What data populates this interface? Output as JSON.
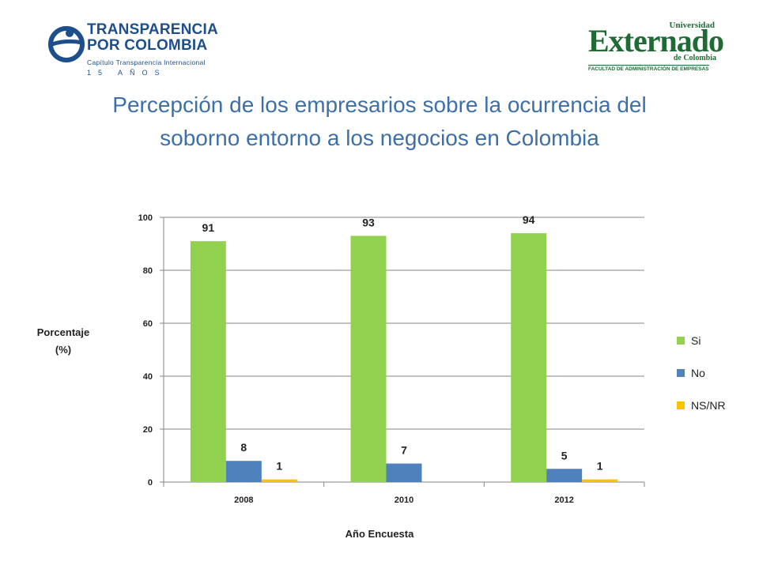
{
  "logos": {
    "left": {
      "line1": "TRANSPARENCIA",
      "line2": "POR COLOMBIA",
      "sub": "Capítulo Transparencia Internacional",
      "years": "15 AÑOS"
    },
    "right": {
      "top": "Universidad",
      "main": "Externado",
      "sub": "de Colombia",
      "faculty": "FACULTAD DE ADMINISTRACIÓN DE EMPRESAS"
    }
  },
  "title": {
    "line1": "Percepción de los empresarios sobre la ocurrencia del",
    "line2": "soborno entorno a los negocios en Colombia"
  },
  "colors": {
    "title": "#3d6fa8",
    "grid": "#868686"
  },
  "chart_data": {
    "type": "bar",
    "categories": [
      "2008",
      "2010",
      "2012"
    ],
    "series": [
      {
        "name": "Si",
        "values": [
          91,
          93,
          94
        ],
        "labels": [
          "91",
          "93",
          "94"
        ],
        "color": "#92d050"
      },
      {
        "name": "No",
        "values": [
          8,
          7,
          5
        ],
        "labels": [
          "8",
          "7",
          "5"
        ],
        "color": "#4f81bd"
      },
      {
        "name": "NS/NR",
        "values": [
          1,
          null,
          1
        ],
        "labels": [
          "1",
          "",
          "1"
        ],
        "color": "#ffc000"
      }
    ],
    "ylim": [
      0,
      100
    ],
    "yticks": [
      "0",
      "20",
      "40",
      "60",
      "80",
      "100"
    ],
    "ylabel_line1": "Porcentaje",
    "ylabel_line2": "(%)",
    "xlabel": "Año Encuesta",
    "grid": true,
    "legend_position": "right"
  }
}
